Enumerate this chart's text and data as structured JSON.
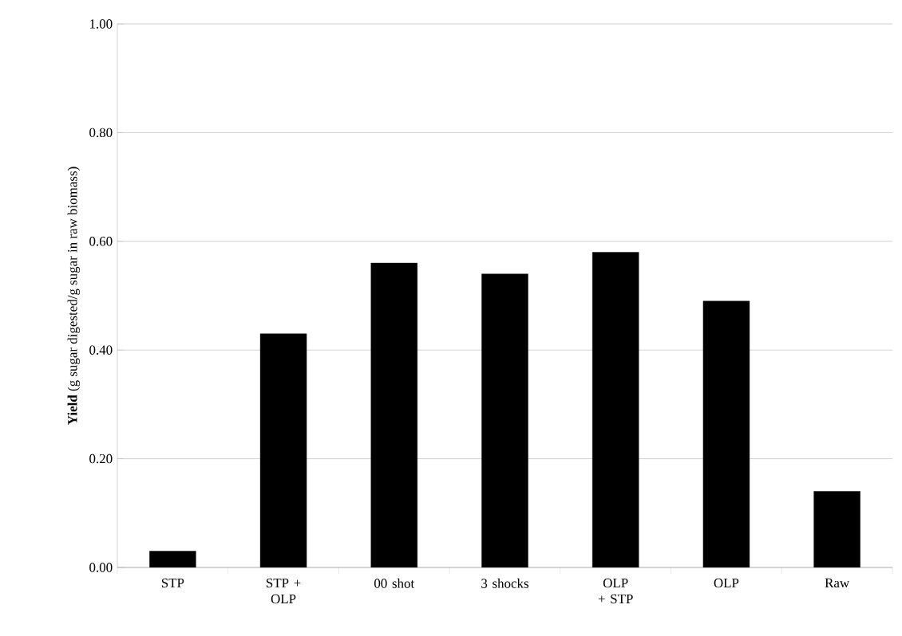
{
  "chart_data": {
    "type": "bar",
    "ylabel": "**Yield** (g sugar digested/g sugar in raw biomass)",
    "categories": [
      "STP",
      "STP + OLP",
      "00 shot",
      "3 shocks",
      "OLP + STP",
      "OLP",
      "Raw"
    ],
    "values": [
      0.03,
      0.43,
      0.56,
      0.54,
      0.58,
      0.49,
      0.14
    ],
    "color": "#000000",
    "ylim": [
      0,
      1
    ],
    "yticks": [
      {
        "value": 0,
        "label": "0.00"
      },
      {
        "value": 0.2,
        "label": "0.20"
      },
      {
        "value": 0.4,
        "label": "0.40"
      },
      {
        "value": 0.6,
        "label": "0.60"
      },
      {
        "value": 0.8,
        "label": "0.80"
      },
      {
        "value": 1,
        "label": "1.00"
      }
    ],
    "grid": "y"
  }
}
